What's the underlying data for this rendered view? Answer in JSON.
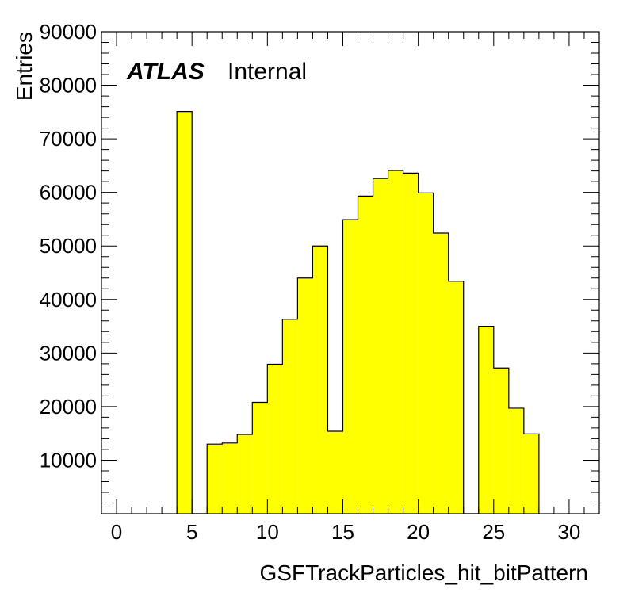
{
  "chart_data": {
    "type": "bar",
    "histogram": true,
    "xlabel": "GSFTrackParticles_hit_bitPattern",
    "ylabel": "Entries",
    "xlim": [
      -1,
      32
    ],
    "ylim": [
      0,
      90000
    ],
    "xticks": [
      0,
      5,
      10,
      15,
      20,
      25,
      30
    ],
    "xtick_labels": [
      "0",
      "5",
      "10",
      "15",
      "20",
      "25",
      "30"
    ],
    "yticks": [
      10000,
      20000,
      30000,
      40000,
      50000,
      60000,
      70000,
      80000,
      90000
    ],
    "ytick_labels": [
      "10000",
      "20000",
      "30000",
      "40000",
      "50000",
      "60000",
      "70000",
      "80000",
      "90000"
    ],
    "fill_color": "#ffff00",
    "edge_color": "#000000",
    "bins": [
      {
        "low": 4,
        "high": 5,
        "value": 75100
      },
      {
        "low": 5,
        "high": 6,
        "value": 0
      },
      {
        "low": 6,
        "high": 7,
        "value": 13000
      },
      {
        "low": 7,
        "high": 8,
        "value": 13200
      },
      {
        "low": 8,
        "high": 9,
        "value": 14800
      },
      {
        "low": 9,
        "high": 10,
        "value": 20800
      },
      {
        "low": 10,
        "high": 11,
        "value": 27900
      },
      {
        "low": 11,
        "high": 12,
        "value": 36300
      },
      {
        "low": 12,
        "high": 13,
        "value": 44000
      },
      {
        "low": 13,
        "high": 14,
        "value": 50000
      },
      {
        "low": 14,
        "high": 15,
        "value": 15400
      },
      {
        "low": 15,
        "high": 16,
        "value": 54900
      },
      {
        "low": 16,
        "high": 17,
        "value": 59300
      },
      {
        "low": 17,
        "high": 18,
        "value": 62600
      },
      {
        "low": 18,
        "high": 19,
        "value": 64100
      },
      {
        "low": 19,
        "high": 20,
        "value": 63600
      },
      {
        "low": 20,
        "high": 21,
        "value": 59900
      },
      {
        "low": 21,
        "high": 22,
        "value": 52400
      },
      {
        "low": 22,
        "high": 23,
        "value": 43400
      },
      {
        "low": 23,
        "high": 24,
        "value": 0
      },
      {
        "low": 24,
        "high": 25,
        "value": 35000
      },
      {
        "low": 25,
        "high": 26,
        "value": 27200
      },
      {
        "low": 26,
        "high": 27,
        "value": 19700
      },
      {
        "low": 27,
        "high": 28,
        "value": 14900
      }
    ],
    "annotations": {
      "experiment": "ATLAS",
      "status": "Internal"
    }
  }
}
